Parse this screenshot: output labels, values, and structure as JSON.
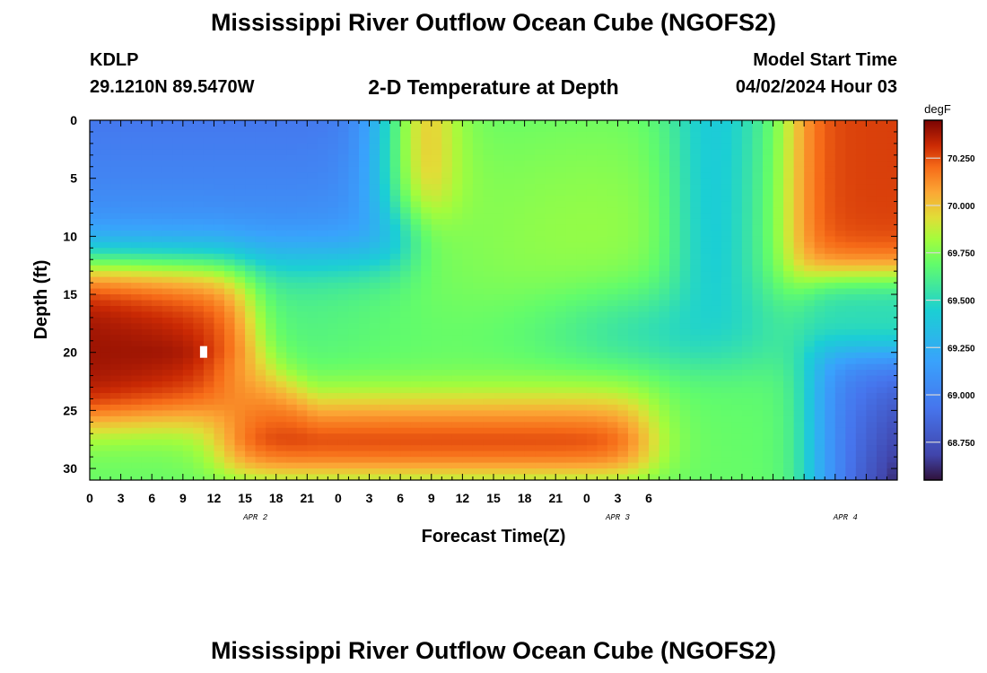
{
  "header": {
    "title": "Mississippi River Outflow Ocean Cube (NGOFS2)",
    "station_id": "KDLP",
    "coordinates": "29.1210N  89.5470W",
    "plot_title": "2-D Temperature at Depth",
    "model_start_label": "Model Start Time",
    "model_start_value": "04/02/2024 Hour 03",
    "repeated_title": "Mississippi River Outflow Ocean Cube (NGOFS2)"
  },
  "chart_data": {
    "type": "heatmap",
    "title": "2-D Temperature at Depth",
    "xlabel": "Forecast Time(Z)",
    "ylabel": "Depth (ft)",
    "x_hours_from_apr2_00z": [
      0,
      78
    ],
    "x_tick_labels": [
      "0",
      "3",
      "6",
      "9",
      "12",
      "15",
      "18",
      "21",
      "0",
      "3",
      "6",
      "9",
      "12",
      "15",
      "18",
      "21",
      "0",
      "3",
      "6"
    ],
    "date_labels": [
      {
        "label": "APR 2",
        "hour": 16
      },
      {
        "label": "APR 3",
        "hour": 51
      },
      {
        "label": "APR 4",
        "hour": 73
      }
    ],
    "y_range": [
      0,
      31
    ],
    "y_ticks": [
      0,
      5,
      10,
      15,
      20,
      25,
      30
    ],
    "colorbar": {
      "unit": "degF",
      "range": [
        68.55,
        70.45
      ],
      "tick_labels": [
        "70.250",
        "70.000",
        "69.750",
        "69.500",
        "69.250",
        "69.000",
        "68.750"
      ],
      "tick_values": [
        70.25,
        70.0,
        69.75,
        69.5,
        69.25,
        69.0,
        68.75
      ]
    },
    "features": [
      {
        "region": "warm core",
        "hour_range": [
          0,
          14
        ],
        "depth_range": [
          15,
          25
        ],
        "peak_degF": 70.4
      },
      {
        "region": "warm layer",
        "hour_range": [
          14,
          54
        ],
        "depth_range": [
          24,
          31
        ],
        "peak_degF": 70.3
      },
      {
        "region": "cool surface",
        "hour_range": [
          0,
          31
        ],
        "depth_range": [
          0,
          12
        ],
        "min_degF": 68.95
      },
      {
        "region": "warm surface",
        "hour_range": [
          68,
          78
        ],
        "depth_range": [
          0,
          13
        ],
        "peak_degF": 70.3
      },
      {
        "region": "cool bottom",
        "hour_range": [
          70,
          78
        ],
        "depth_range": [
          20,
          31
        ],
        "min_degF": 68.6
      }
    ],
    "marker": {
      "hour": 11,
      "depth": 20
    }
  }
}
